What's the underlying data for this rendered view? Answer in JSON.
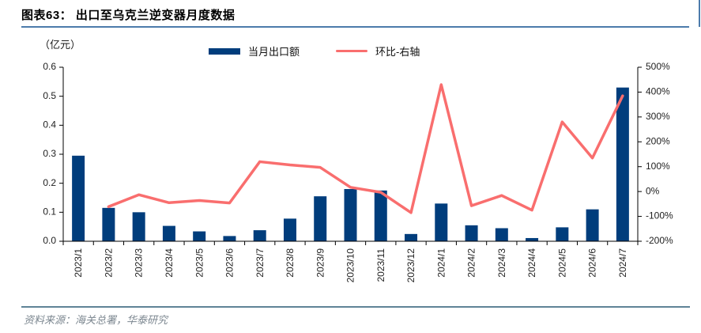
{
  "header": {
    "title": "图表63： 出口至乌克兰逆变器月度数据"
  },
  "legend": {
    "items": [
      {
        "label": "当月出口额",
        "swatch": "bar-swatch"
      },
      {
        "label": "环比-右轴",
        "swatch": "line-swatch"
      }
    ]
  },
  "footer": {
    "source": "资料来源：海关总署，华泰研究"
  },
  "colors": {
    "bar": "#003D7C",
    "line": "#F96E6E",
    "title_rule": "#4C7BAB",
    "footer_rule": "#5F8396",
    "axis": "#000000"
  },
  "chart_data": {
    "type": "bar",
    "subtype": "combo-bar-line",
    "title": "出口至乌克兰逆变器月度数据",
    "categories": [
      "2023/1",
      "2023/2",
      "2023/3",
      "2023/4",
      "2023/5",
      "2023/6",
      "2023/7",
      "2023/8",
      "2023/9",
      "2023/10",
      "2023/11",
      "2023/12",
      "2024/1",
      "2024/2",
      "2024/3",
      "2024/4",
      "2024/5",
      "2024/6",
      "2024/7"
    ],
    "series": [
      {
        "name": "当月出口额",
        "type": "bar",
        "axis": "left",
        "color": "#003D7C",
        "values": [
          0.295,
          0.115,
          0.1,
          0.053,
          0.034,
          0.018,
          0.038,
          0.078,
          0.155,
          0.18,
          0.175,
          0.025,
          0.13,
          0.055,
          0.045,
          0.011,
          0.048,
          0.11,
          0.53
        ]
      },
      {
        "name": "环比-右轴",
        "type": "line",
        "axis": "right",
        "color": "#F96E6E",
        "values": [
          null,
          -61,
          -13,
          -45,
          -36,
          -46,
          120,
          107,
          97,
          17,
          -3,
          -85,
          430,
          -57,
          -16,
          -75,
          280,
          135,
          385
        ]
      }
    ],
    "left_axis": {
      "unit_label": "（亿元）",
      "min": 0,
      "max": 0.6,
      "tick_labels": [
        "0.6",
        "0.5",
        "0.4",
        "0.3",
        "0.2",
        "0.1",
        "0.0"
      ]
    },
    "right_axis": {
      "min": -200,
      "max": 500,
      "tick_labels": [
        "500%",
        "400%",
        "300%",
        "200%",
        "100%",
        "0%",
        "-100%",
        "-200%"
      ]
    },
    "legend_position": "top",
    "grid": false
  }
}
